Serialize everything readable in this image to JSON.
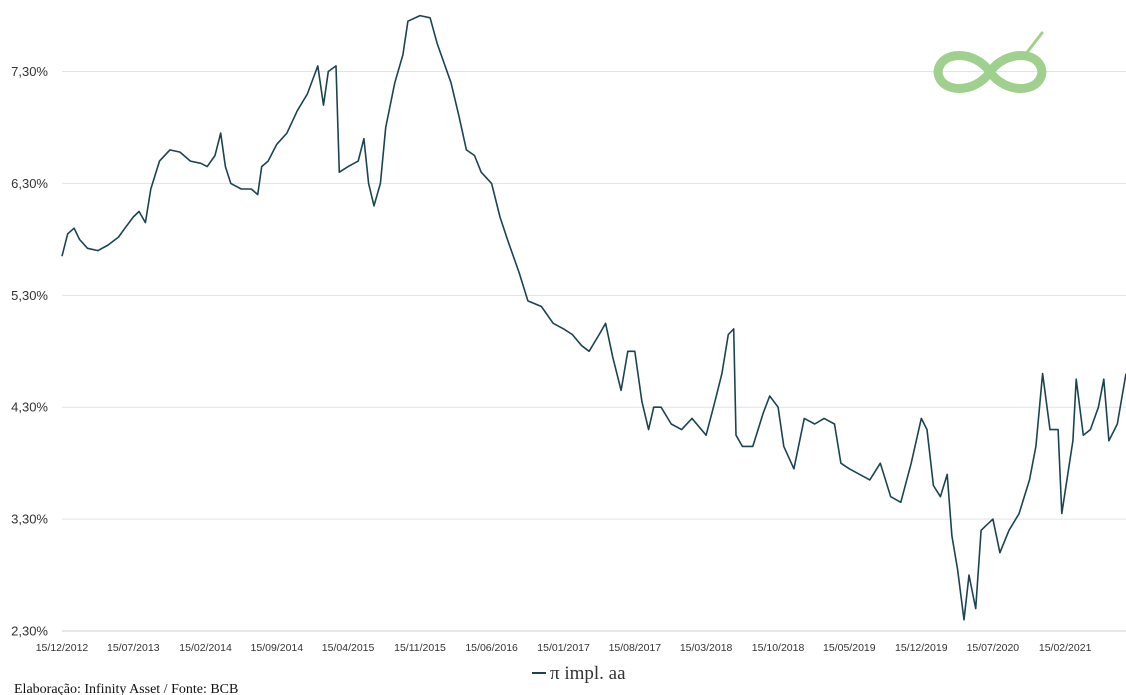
{
  "colors": {
    "line": "#1b4452",
    "grid": "#e3e3e3",
    "logo": "#9fd08d"
  },
  "logo": {
    "icon": "infinity-icon"
  },
  "source": "Elaboração: Infinity Asset / Fonte: BCB",
  "chart_data": {
    "type": "line",
    "title": "",
    "xlabel": "",
    "ylabel": "",
    "ylim": [
      2.3,
      7.85
    ],
    "xlim": [
      "2012-12-15",
      "2021-08-15"
    ],
    "grid": "horizontal",
    "legend_position": "bottom-center",
    "y_ticks": [
      {
        "value": 2.3,
        "label": "2,30%"
      },
      {
        "value": 3.3,
        "label": "3,30%"
      },
      {
        "value": 4.3,
        "label": "4,30%"
      },
      {
        "value": 5.3,
        "label": "5,30%"
      },
      {
        "value": 6.3,
        "label": "6,30%"
      },
      {
        "value": 7.3,
        "label": "7,30%"
      }
    ],
    "x_ticks": [
      {
        "value": "2012-12-15",
        "label": "15/12/2012"
      },
      {
        "value": "2013-07-15",
        "label": "15/07/2013"
      },
      {
        "value": "2014-02-15",
        "label": "15/02/2014"
      },
      {
        "value": "2014-09-15",
        "label": "15/09/2014"
      },
      {
        "value": "2015-04-15",
        "label": "15/04/2015"
      },
      {
        "value": "2015-11-15",
        "label": "15/11/2015"
      },
      {
        "value": "2016-06-15",
        "label": "15/06/2016"
      },
      {
        "value": "2017-01-15",
        "label": "15/01/2017"
      },
      {
        "value": "2017-08-15",
        "label": "15/08/2017"
      },
      {
        "value": "2018-03-15",
        "label": "15/03/2018"
      },
      {
        "value": "2018-10-15",
        "label": "15/10/2018"
      },
      {
        "value": "2019-05-15",
        "label": "15/05/2019"
      },
      {
        "value": "2019-12-15",
        "label": "15/12/2019"
      },
      {
        "value": "2020-07-15",
        "label": "15/07/2020"
      },
      {
        "value": "2021-02-15",
        "label": "15/02/2021"
      }
    ],
    "series": [
      {
        "name": "π impl. aa",
        "points": [
          [
            "2012-12-15",
            5.65
          ],
          [
            "2013-01-01",
            5.85
          ],
          [
            "2013-01-20",
            5.9
          ],
          [
            "2013-02-05",
            5.8
          ],
          [
            "2013-03-01",
            5.72
          ],
          [
            "2013-04-01",
            5.7
          ],
          [
            "2013-05-01",
            5.75
          ],
          [
            "2013-06-01",
            5.82
          ],
          [
            "2013-06-20",
            5.9
          ],
          [
            "2013-07-15",
            6.0
          ],
          [
            "2013-08-01",
            6.05
          ],
          [
            "2013-08-20",
            5.95
          ],
          [
            "2013-09-05",
            6.25
          ],
          [
            "2013-10-01",
            6.5
          ],
          [
            "2013-11-01",
            6.6
          ],
          [
            "2013-12-01",
            6.58
          ],
          [
            "2014-01-01",
            6.5
          ],
          [
            "2014-02-01",
            6.48
          ],
          [
            "2014-02-20",
            6.45
          ],
          [
            "2014-03-15",
            6.55
          ],
          [
            "2014-04-01",
            6.75
          ],
          [
            "2014-04-15",
            6.45
          ],
          [
            "2014-05-01",
            6.3
          ],
          [
            "2014-06-01",
            6.25
          ],
          [
            "2014-07-01",
            6.25
          ],
          [
            "2014-07-20",
            6.2
          ],
          [
            "2014-08-01",
            6.45
          ],
          [
            "2014-08-20",
            6.5
          ],
          [
            "2014-09-15",
            6.65
          ],
          [
            "2014-10-15",
            6.75
          ],
          [
            "2014-11-15",
            6.95
          ],
          [
            "2014-12-15",
            7.1
          ],
          [
            "2015-01-15",
            7.35
          ],
          [
            "2015-02-01",
            7.0
          ],
          [
            "2015-02-15",
            7.3
          ],
          [
            "2015-03-10",
            7.35
          ],
          [
            "2015-03-20",
            6.4
          ],
          [
            "2015-04-15",
            6.45
          ],
          [
            "2015-05-15",
            6.5
          ],
          [
            "2015-06-01",
            6.7
          ],
          [
            "2015-06-15",
            6.3
          ],
          [
            "2015-07-01",
            6.1
          ],
          [
            "2015-07-20",
            6.3
          ],
          [
            "2015-08-05",
            6.8
          ],
          [
            "2015-09-01",
            7.2
          ],
          [
            "2015-09-25",
            7.45
          ],
          [
            "2015-10-10",
            7.75
          ],
          [
            "2015-11-15",
            7.8
          ],
          [
            "2015-12-15",
            7.78
          ],
          [
            "2016-01-05",
            7.55
          ],
          [
            "2016-02-15",
            7.2
          ],
          [
            "2016-03-10",
            6.9
          ],
          [
            "2016-04-01",
            6.6
          ],
          [
            "2016-04-25",
            6.55
          ],
          [
            "2016-05-15",
            6.4
          ],
          [
            "2016-06-15",
            6.3
          ],
          [
            "2016-07-10",
            6.0
          ],
          [
            "2016-08-01",
            5.8
          ],
          [
            "2016-09-05",
            5.5
          ],
          [
            "2016-10-01",
            5.25
          ],
          [
            "2016-11-10",
            5.2
          ],
          [
            "2016-12-15",
            5.05
          ],
          [
            "2017-01-15",
            5.0
          ],
          [
            "2017-02-10",
            4.95
          ],
          [
            "2017-03-10",
            4.85
          ],
          [
            "2017-04-01",
            4.8
          ],
          [
            "2017-05-01",
            4.95
          ],
          [
            "2017-05-20",
            5.05
          ],
          [
            "2017-06-10",
            4.75
          ],
          [
            "2017-07-05",
            4.45
          ],
          [
            "2017-07-25",
            4.8
          ],
          [
            "2017-08-15",
            4.8
          ],
          [
            "2017-09-05",
            4.35
          ],
          [
            "2017-09-25",
            4.1
          ],
          [
            "2017-10-10",
            4.3
          ],
          [
            "2017-11-01",
            4.3
          ],
          [
            "2017-12-01",
            4.15
          ],
          [
            "2018-01-01",
            4.1
          ],
          [
            "2018-02-01",
            4.2
          ],
          [
            "2018-03-15",
            4.05
          ],
          [
            "2018-04-10",
            4.35
          ],
          [
            "2018-05-01",
            4.6
          ],
          [
            "2018-05-20",
            4.95
          ],
          [
            "2018-06-05",
            5.0
          ],
          [
            "2018-06-12",
            4.05
          ],
          [
            "2018-07-01",
            3.95
          ],
          [
            "2018-08-01",
            3.95
          ],
          [
            "2018-09-01",
            4.25
          ],
          [
            "2018-09-20",
            4.4
          ],
          [
            "2018-10-15",
            4.3
          ],
          [
            "2018-11-01",
            3.95
          ],
          [
            "2018-12-01",
            3.75
          ],
          [
            "2019-01-01",
            4.2
          ],
          [
            "2019-02-01",
            4.15
          ],
          [
            "2019-03-01",
            4.2
          ],
          [
            "2019-04-01",
            4.15
          ],
          [
            "2019-04-20",
            3.8
          ],
          [
            "2019-05-15",
            3.75
          ],
          [
            "2019-06-15",
            3.7
          ],
          [
            "2019-07-15",
            3.65
          ],
          [
            "2019-08-15",
            3.8
          ],
          [
            "2019-09-15",
            3.5
          ],
          [
            "2019-10-15",
            3.45
          ],
          [
            "2019-11-15",
            3.8
          ],
          [
            "2019-12-15",
            4.2
          ],
          [
            "2020-01-01",
            4.1
          ],
          [
            "2020-01-20",
            3.6
          ],
          [
            "2020-02-10",
            3.5
          ],
          [
            "2020-03-01",
            3.7
          ],
          [
            "2020-03-15",
            3.15
          ],
          [
            "2020-04-01",
            2.85
          ],
          [
            "2020-04-20",
            2.4
          ],
          [
            "2020-05-05",
            2.8
          ],
          [
            "2020-05-25",
            2.5
          ],
          [
            "2020-06-10",
            3.2
          ],
          [
            "2020-07-15",
            3.3
          ],
          [
            "2020-08-05",
            3.0
          ],
          [
            "2020-09-01",
            3.2
          ],
          [
            "2020-10-01",
            3.35
          ],
          [
            "2020-11-01",
            3.65
          ],
          [
            "2020-11-20",
            3.95
          ],
          [
            "2020-12-10",
            4.6
          ],
          [
            "2021-01-01",
            4.1
          ],
          [
            "2021-01-25",
            4.1
          ],
          [
            "2021-02-05",
            3.35
          ],
          [
            "2021-02-15",
            3.55
          ],
          [
            "2021-03-10",
            4.0
          ],
          [
            "2021-03-20",
            4.55
          ],
          [
            "2021-04-10",
            4.05
          ],
          [
            "2021-05-01",
            4.1
          ],
          [
            "2021-05-25",
            4.3
          ],
          [
            "2021-06-10",
            4.55
          ],
          [
            "2021-06-25",
            4.0
          ],
          [
            "2021-07-20",
            4.15
          ],
          [
            "2021-08-15",
            4.6
          ]
        ]
      }
    ]
  }
}
